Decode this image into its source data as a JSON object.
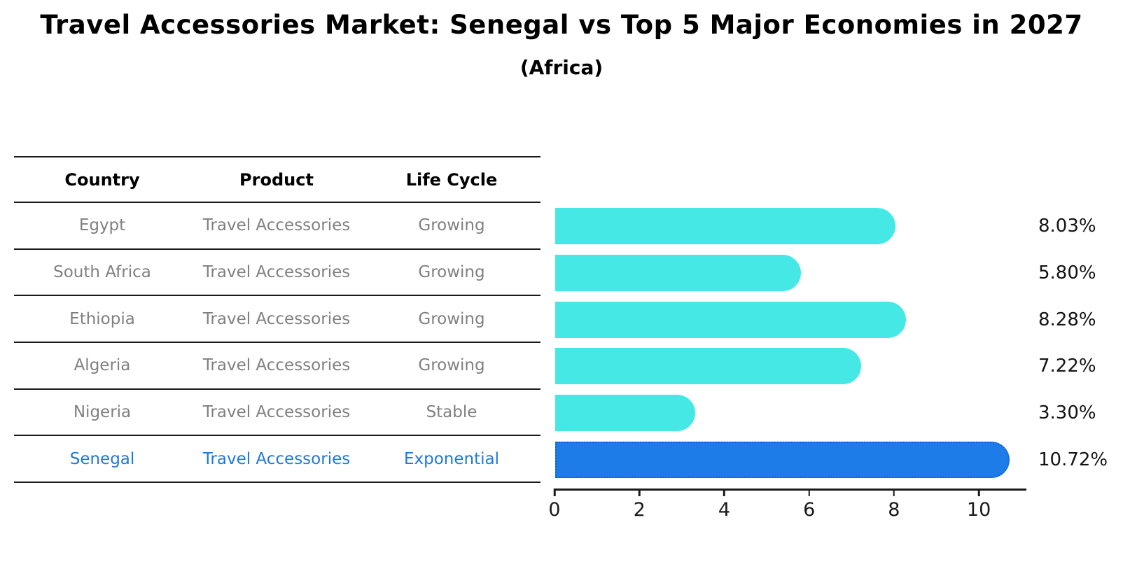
{
  "title": "Travel Accessories Market: Senegal vs Top 5 Major Economies in 2027",
  "subtitle": "(Africa)",
  "table": {
    "headers": {
      "country": "Country",
      "product": "Product",
      "life_cycle": "Life Cycle"
    },
    "rows": [
      {
        "country": "Egypt",
        "product": "Travel Accessories",
        "life_cycle": "Growing"
      },
      {
        "country": "South Africa",
        "product": "Travel Accessories",
        "life_cycle": "Growing"
      },
      {
        "country": "Ethiopia",
        "product": "Travel Accessories",
        "life_cycle": "Growing"
      },
      {
        "country": "Algeria",
        "product": "Travel Accessories",
        "life_cycle": "Growing"
      },
      {
        "country": "Nigeria",
        "product": "Travel Accessories",
        "life_cycle": "Stable"
      },
      {
        "country": "Senegal",
        "product": "Travel Accessories",
        "life_cycle": "Exponential"
      }
    ],
    "highlight_row_index": 5
  },
  "chart_data": {
    "type": "bar",
    "orientation": "horizontal",
    "title": "Travel Accessories Market: Senegal vs Top 5 Major Economies in 2027",
    "subtitle": "(Africa)",
    "categories": [
      "Egypt",
      "South Africa",
      "Ethiopia",
      "Algeria",
      "Nigeria",
      "Senegal"
    ],
    "values": [
      8.03,
      5.8,
      8.28,
      7.22,
      3.3,
      10.72
    ],
    "value_labels": [
      "8.03%",
      "5.80%",
      "8.28%",
      "7.22%",
      "3.30%",
      "10.72%"
    ],
    "xlim": [
      0,
      11.12
    ],
    "xticks": [
      0,
      2,
      4,
      6,
      8,
      10
    ],
    "grid": false,
    "legend": false,
    "highlight_index": 5,
    "bar_color": "#46e8e6",
    "highlight_bar_color": "#1e7ce8",
    "highlight_border_color": "#1261d4"
  },
  "colors": {
    "background": "#ffffff",
    "table_line": "#1a1a1a",
    "header_text": "#000000",
    "row_text": "#808080",
    "highlight_text": "#1e78dc",
    "bar": "#46e8e6",
    "highlight_bar": "#1e7ce8",
    "value_label_text": "#141414"
  }
}
